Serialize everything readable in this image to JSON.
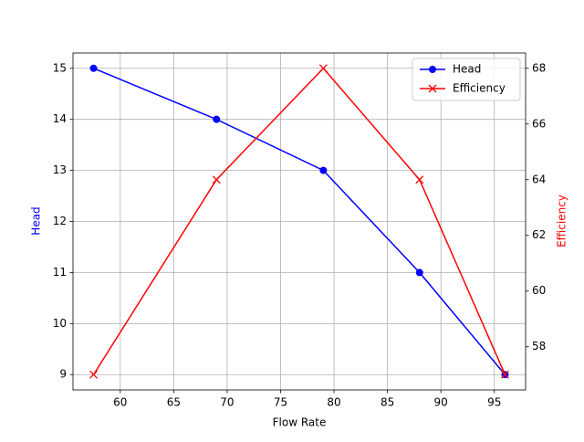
{
  "chart_data": {
    "type": "line",
    "x_label": "Flow Rate",
    "y_label": "Head",
    "y2_label": "Efficiency",
    "x": [
      57.5,
      69,
      79,
      88,
      96
    ],
    "series": [
      {
        "name": "Head",
        "color": "#0000ff",
        "marker": "o",
        "values": [
          15,
          14,
          13,
          11,
          9
        ]
      },
      {
        "name": "Efficiency",
        "color": "#ff0000",
        "marker": "x",
        "axis": "y2",
        "values": [
          57,
          64,
          68,
          64,
          57
        ]
      }
    ],
    "xlim": [
      55.575,
      97.925
    ],
    "xticks": [
      60,
      65,
      70,
      75,
      80,
      85,
      90,
      95
    ],
    "ylim": [
      8.7,
      15.3
    ],
    "yticks": [
      9,
      10,
      11,
      12,
      13,
      14,
      15
    ],
    "y2lim": [
      56.45,
      68.55
    ],
    "y2ticks": [
      58,
      60,
      62,
      64,
      66,
      68
    ],
    "grid": true,
    "legend": "upper-right"
  }
}
